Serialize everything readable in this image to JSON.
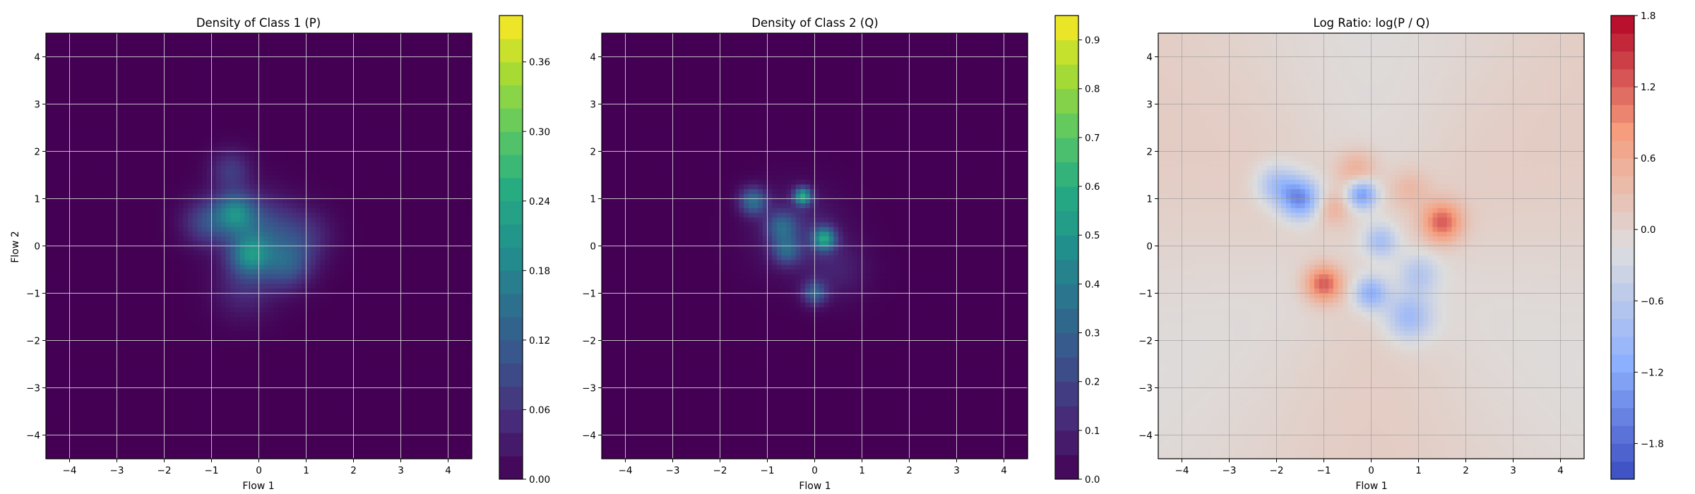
{
  "chart_data": [
    {
      "type": "heatmap",
      "title": "Density of Class 1 (P)",
      "xlabel": "Flow 1",
      "ylabel": "Flow 2",
      "xlim": [
        -4.5,
        4.5
      ],
      "ylim": [
        -4.5,
        4.5
      ],
      "xticks": [
        "−4",
        "−3",
        "−2",
        "−1",
        "0",
        "1",
        "2",
        "3",
        "4"
      ],
      "yticks": [
        "4",
        "3",
        "2",
        "1",
        "0",
        "−1",
        "−2",
        "−3",
        "−4"
      ],
      "grid": true,
      "colormap": "viridis",
      "colorbar": {
        "range": [
          0,
          0.4
        ],
        "ticks": [
          "0.00",
          "0.06",
          "0.12",
          "0.18",
          "0.24",
          "0.30",
          "0.36"
        ]
      },
      "blobs": [
        {
          "x": -0.5,
          "y": 0.7,
          "amp": 0.16,
          "s": 0.3
        },
        {
          "x": -0.2,
          "y": -0.2,
          "amp": 0.15,
          "s": 0.3
        },
        {
          "x": 0.6,
          "y": -0.4,
          "amp": 0.1,
          "s": 0.35
        },
        {
          "x": -1.1,
          "y": 0.5,
          "amp": 0.09,
          "s": 0.35
        },
        {
          "x": -0.6,
          "y": 1.6,
          "amp": 0.07,
          "s": 0.3
        },
        {
          "x": 0.1,
          "y": 0.3,
          "amp": 0.1,
          "s": 0.5
        },
        {
          "x": -0.3,
          "y": -0.9,
          "amp": 0.05,
          "s": 0.45
        },
        {
          "x": 1.0,
          "y": 0.2,
          "amp": 0.05,
          "s": 0.4
        }
      ]
    },
    {
      "type": "heatmap",
      "title": "Density of Class 2 (Q)",
      "xlabel": "Flow 1",
      "ylabel": "",
      "xlim": [
        -4.5,
        4.5
      ],
      "ylim": [
        -4.5,
        4.5
      ],
      "xticks": [
        "−4",
        "−3",
        "−2",
        "−1",
        "0",
        "1",
        "2",
        "3",
        "4"
      ],
      "yticks": [
        "4",
        "3",
        "2",
        "1",
        "0",
        "−1",
        "−2",
        "−3",
        "−4"
      ],
      "grid": true,
      "colormap": "viridis",
      "colorbar": {
        "range": [
          0,
          0.95
        ],
        "ticks": [
          "0.0",
          "0.1",
          "0.2",
          "0.3",
          "0.4",
          "0.5",
          "0.6",
          "0.7",
          "0.8",
          "0.9"
        ]
      },
      "blobs": [
        {
          "x": -0.25,
          "y": 1.05,
          "amp": 0.55,
          "s": 0.13
        },
        {
          "x": 0.2,
          "y": 0.15,
          "amp": 0.5,
          "s": 0.17
        },
        {
          "x": -1.3,
          "y": 0.95,
          "amp": 0.35,
          "s": 0.2
        },
        {
          "x": -0.7,
          "y": 0.4,
          "amp": 0.25,
          "s": 0.22
        },
        {
          "x": -0.6,
          "y": -0.1,
          "amp": 0.25,
          "s": 0.2
        },
        {
          "x": 0.0,
          "y": -1.0,
          "amp": 0.28,
          "s": 0.18
        },
        {
          "x": -0.4,
          "y": 0.3,
          "amp": 0.12,
          "s": 0.6
        },
        {
          "x": 0.5,
          "y": -0.5,
          "amp": 0.08,
          "s": 0.45
        }
      ]
    },
    {
      "type": "heatmap",
      "title": "Log Ratio: log(P / Q)",
      "xlabel": "Flow 1",
      "ylabel": "",
      "xlim": [
        -4.5,
        4.5
      ],
      "ylim": [
        -4.5,
        4.5
      ],
      "xticks": [
        "−4",
        "−3",
        "−2",
        "−1",
        "0",
        "1",
        "2",
        "3",
        "4"
      ],
      "yticks": [
        "4",
        "3",
        "2",
        "1",
        "0",
        "−1",
        "−2",
        "−3",
        "−4"
      ],
      "grid": true,
      "colormap": "coolwarm",
      "colorbar": {
        "range": [
          -2.1,
          1.8
        ],
        "ticks": [
          "1.8",
          "1.2",
          "0.6",
          "0.0",
          "−0.6",
          "−1.2",
          "−1.8"
        ]
      },
      "blobs": [
        {
          "x": 1.5,
          "y": 0.5,
          "amp": 1.2,
          "s": 0.3
        },
        {
          "x": -1.0,
          "y": -0.8,
          "amp": 1.3,
          "s": 0.28
        },
        {
          "x": -0.3,
          "y": 1.6,
          "amp": 0.6,
          "s": 0.3
        },
        {
          "x": -0.8,
          "y": 0.8,
          "amp": 0.5,
          "s": 0.25
        },
        {
          "x": 0.8,
          "y": 1.2,
          "amp": 0.4,
          "s": 0.3
        },
        {
          "x": -1.5,
          "y": 1.0,
          "amp": -1.5,
          "s": 0.3
        },
        {
          "x": -0.2,
          "y": 1.1,
          "amp": -1.4,
          "s": 0.22
        },
        {
          "x": -2.0,
          "y": 1.3,
          "amp": -0.8,
          "s": 0.3
        },
        {
          "x": 0.0,
          "y": -1.0,
          "amp": -1.1,
          "s": 0.25
        },
        {
          "x": 0.8,
          "y": -1.5,
          "amp": -0.9,
          "s": 0.35
        },
        {
          "x": 0.2,
          "y": 0.1,
          "amp": -0.8,
          "s": 0.25
        },
        {
          "x": 1.0,
          "y": -0.6,
          "amp": -0.6,
          "s": 0.3
        }
      ]
    }
  ]
}
